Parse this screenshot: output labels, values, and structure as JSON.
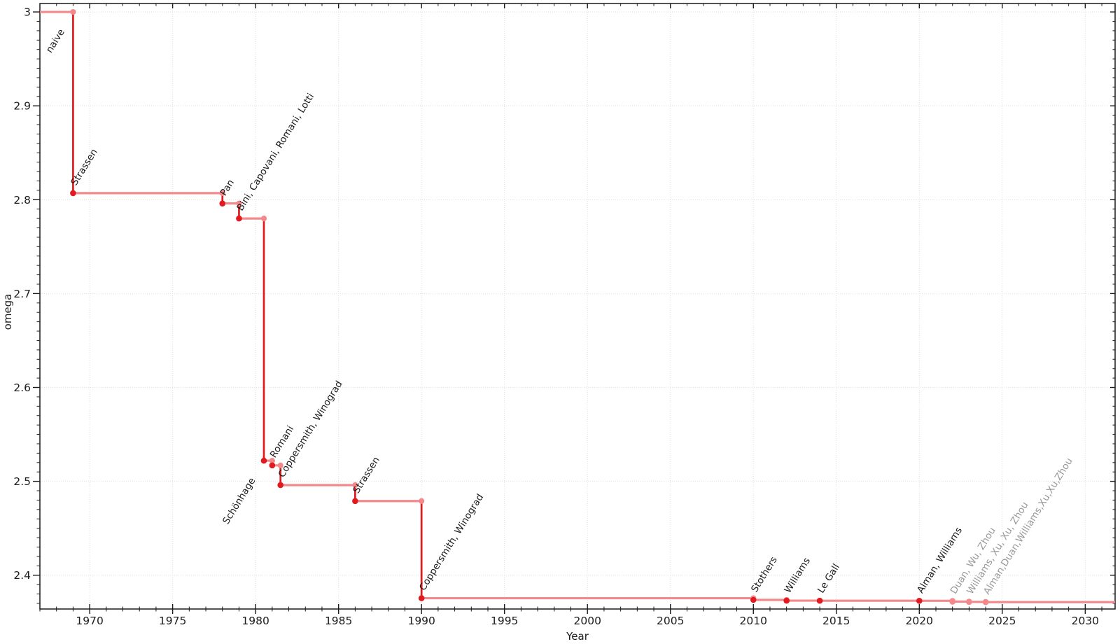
{
  "chart_data": {
    "type": "line",
    "subtype": "step-record-timeline",
    "title": "",
    "xlabel": "Year",
    "ylabel": "omega",
    "xlim": [
      1967.0,
      2031.8
    ],
    "ylim": [
      2.364,
      3.009
    ],
    "grid": true,
    "legend": "none",
    "x_major_ticks": [
      {
        "v": 1970,
        "label": "1970"
      },
      {
        "v": 1975,
        "label": "1975"
      },
      {
        "v": 1980,
        "label": "1980"
      },
      {
        "v": 1985,
        "label": "1985"
      },
      {
        "v": 1990,
        "label": "1990"
      },
      {
        "v": 1995,
        "label": "1995"
      },
      {
        "v": 2000,
        "label": "2000"
      },
      {
        "v": 2005,
        "label": "2005"
      },
      {
        "v": 2010,
        "label": "2010"
      },
      {
        "v": 2015,
        "label": "2015"
      },
      {
        "v": 2020,
        "label": "2020"
      },
      {
        "v": 2025,
        "label": "2025"
      },
      {
        "v": 2030,
        "label": "2030"
      }
    ],
    "y_major_ticks": [
      {
        "v": 3.0,
        "label": "3"
      },
      {
        "v": 2.9,
        "label": "2.9"
      },
      {
        "v": 2.8,
        "label": "2.8"
      },
      {
        "v": 2.7,
        "label": "2.7"
      },
      {
        "v": 2.6,
        "label": "2.6"
      },
      {
        "v": 2.5,
        "label": "2.5"
      },
      {
        "v": 2.4,
        "label": "2.4"
      }
    ],
    "x_minor_step": 1,
    "y_minor_step": 0.01,
    "baseline": {
      "label": "naive",
      "omega": 3.0
    },
    "points": [
      {
        "year": 1969,
        "omega": 2.807,
        "label": "Strassen",
        "status": "established",
        "label_side": "above"
      },
      {
        "year": 1978,
        "omega": 2.796,
        "label": "Pan",
        "status": "established",
        "label_side": "above"
      },
      {
        "year": 1979,
        "omega": 2.78,
        "label": "Bini, Capovani, Romani, Lotti",
        "status": "established",
        "label_side": "above"
      },
      {
        "year": 1980.5,
        "omega": 2.522,
        "label": "Schönhage",
        "status": "established",
        "label_side": "below"
      },
      {
        "year": 1981,
        "omega": 2.517,
        "label": "Romani",
        "status": "established",
        "label_side": "above"
      },
      {
        "year": 1981.5,
        "omega": 2.496,
        "label": "Coppersmith, Winograd",
        "status": "established",
        "label_side": "above"
      },
      {
        "year": 1986,
        "omega": 2.479,
        "label": "Strassen",
        "status": "established",
        "label_side": "above"
      },
      {
        "year": 1990,
        "omega": 2.3755,
        "label": "Coppersmith, Winograd",
        "status": "established",
        "label_side": "above"
      },
      {
        "year": 2010,
        "omega": 2.3737,
        "label": "Stothers",
        "status": "established",
        "label_side": "above"
      },
      {
        "year": 2012,
        "omega": 2.3729,
        "label": "Williams",
        "status": "established",
        "label_side": "above"
      },
      {
        "year": 2014,
        "omega": 2.3728,
        "label": "Le Gall",
        "status": "established",
        "label_side": "above"
      },
      {
        "year": 2020,
        "omega": 2.3727,
        "label": "Alman, Williams",
        "status": "established",
        "label_side": "above"
      },
      {
        "year": 2022,
        "omega": 2.3719,
        "label": "Duan, Wu, Zhou",
        "status": "preprint",
        "label_side": "above"
      },
      {
        "year": 2023,
        "omega": 2.3716,
        "label": "Williams, Xu, Xu, Zhou",
        "status": "preprint",
        "label_side": "above"
      },
      {
        "year": 2024,
        "omega": 2.3713,
        "label": "Alman,Duan,Williams,Xu,Xu,Zhou",
        "status": "preprint",
        "label_side": "above"
      }
    ],
    "colors": {
      "plateau_line": "#f4898c",
      "drop_line": "#e01a1e",
      "marker_record": "#e01a1e",
      "marker_step_top": "#f4898c",
      "marker_preprint": "#f4898c",
      "label_established": "#1c1c1c",
      "label_preprint": "#999999",
      "grid": "#dedede",
      "frame": "#1a1a1a",
      "tick_label": "#1c1c1c",
      "background": "#ffffff"
    }
  }
}
